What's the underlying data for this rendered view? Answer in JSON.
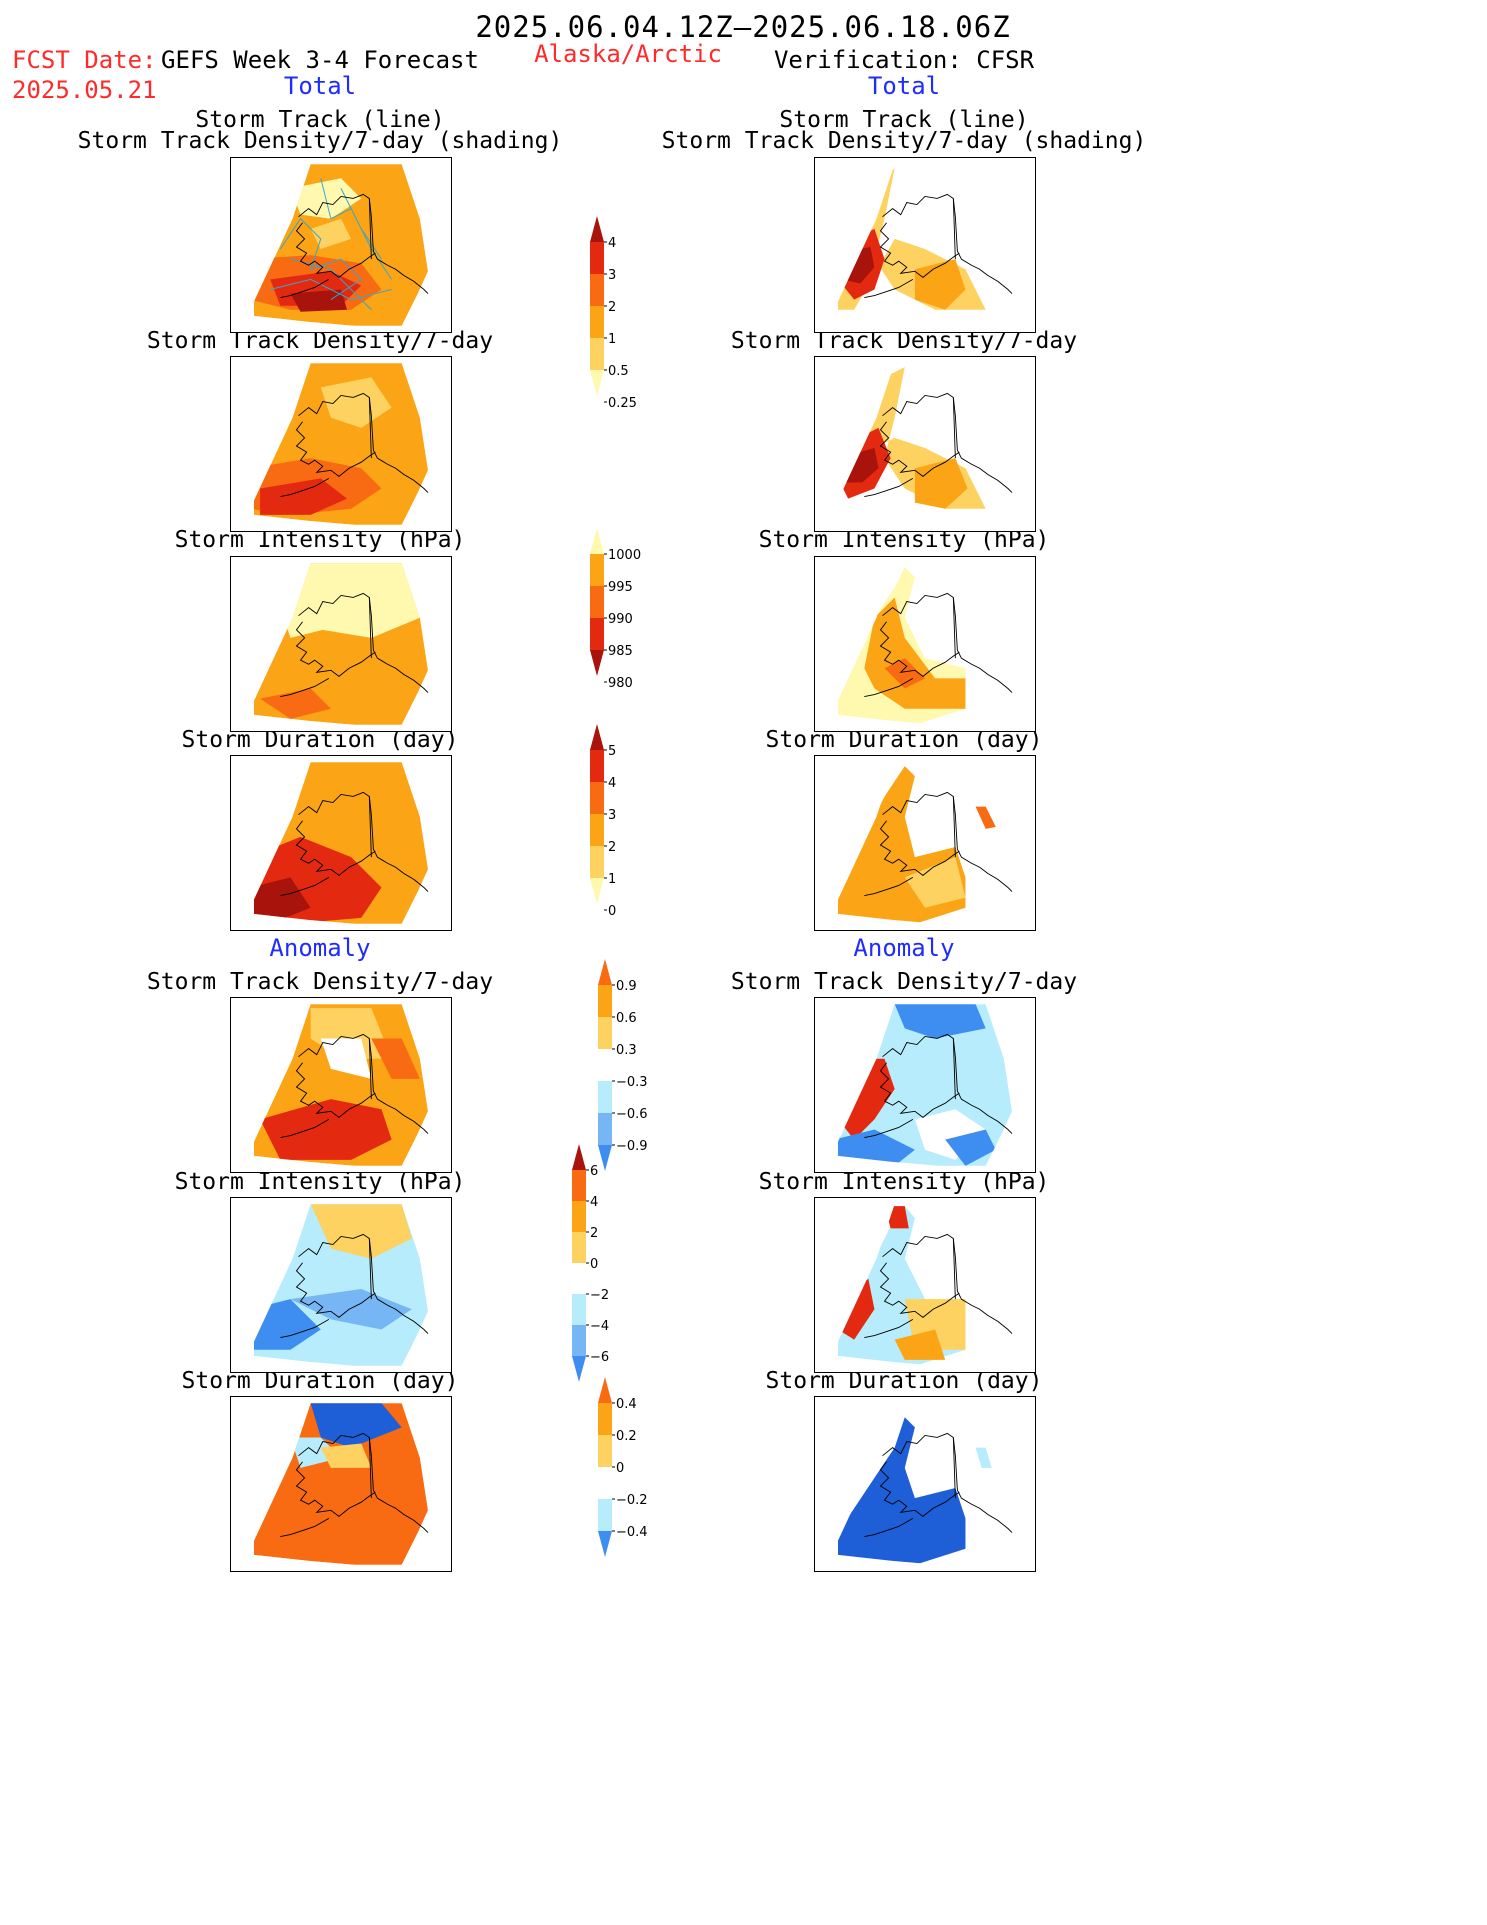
{
  "header": {
    "date_range": "2025.06.04.12Z–2025.06.18.06Z",
    "fcst_label": "FCST Date:",
    "fcst_date": "2025.05.21",
    "region": "Alaska/Arctic",
    "left_title": "GEFS Week 3-4 Forecast",
    "right_title": "Verification: CFSR",
    "left_subtitle": "Total",
    "right_subtitle": "Total",
    "anomaly_left": "Anomaly",
    "anomaly_right": "Anomaly"
  },
  "panel_titles": {
    "track_line": "Storm Track (line)",
    "track_shading": "Storm Track Density/7-day (shading)",
    "density": "Storm Track Density/7-day",
    "intensity": "Storm Intensity (hPa)",
    "duration": "Storm Duration (day)"
  },
  "colors": {
    "pale": "#fff9b0",
    "light_orange": "#fdd260",
    "orange": "#fba415",
    "dark_orange": "#f86b12",
    "red": "#e32a10",
    "dark_red": "#a8140b",
    "light_blue": "#b6ecfb",
    "mid_blue": "#77b6f5",
    "blue": "#3d8ef0",
    "dark_blue": "#1e5fd8",
    "track_line": "#3aa6c6"
  },
  "chart_data": [
    {
      "type": "colorbar",
      "name": "density_total",
      "levels": [
        0.25,
        0.5,
        1,
        2,
        3,
        4
      ],
      "labels": [
        "0.25",
        "0.5",
        "1",
        "2",
        "3",
        "4"
      ],
      "colors": [
        "#fff9b0",
        "#fdd260",
        "#fba415",
        "#f86b12",
        "#e32a10",
        "#a8140b"
      ]
    },
    {
      "type": "colorbar",
      "name": "intensity_total",
      "levels": [
        1000,
        995,
        990,
        985,
        980
      ],
      "labels": [
        "1000",
        "995",
        "990",
        "985",
        "980"
      ],
      "colors": [
        "#fff9b0",
        "#fba415",
        "#f86b12",
        "#e32a10",
        "#a8140b"
      ]
    },
    {
      "type": "colorbar",
      "name": "duration_total",
      "levels": [
        5,
        4,
        3,
        2,
        1,
        0
      ],
      "labels": [
        "5",
        "4",
        "3",
        "2",
        "1",
        "0"
      ],
      "colors": [
        "#a8140b",
        "#e32a10",
        "#f86b12",
        "#fba415",
        "#fdd260",
        "#fff9b0"
      ]
    },
    {
      "type": "colorbar",
      "name": "density_anomaly",
      "levels": [
        0.9,
        0.6,
        0.3,
        -0.3,
        -0.6,
        -0.9
      ],
      "labels": [
        "0.9",
        "0.6",
        "0.3",
        "−0.3",
        "−0.6",
        "−0.9"
      ],
      "colors": [
        "#f86b12",
        "#fba415",
        "#fdd260",
        "#ffffff",
        "#b6ecfb",
        "#77b6f5",
        "#3d8ef0"
      ]
    },
    {
      "type": "colorbar",
      "name": "intensity_anomaly",
      "levels": [
        6,
        4,
        2,
        0,
        -2,
        -4,
        -6
      ],
      "labels": [
        "6",
        "4",
        "2",
        "0",
        "−2",
        "−4",
        "−6"
      ],
      "colors": [
        "#a8140b",
        "#f86b12",
        "#fba415",
        "#fdd260",
        "#ffffff",
        "#b6ecfb",
        "#77b6f5",
        "#3d8ef0"
      ]
    },
    {
      "type": "colorbar",
      "name": "duration_anomaly",
      "levels": [
        0.4,
        0.2,
        0,
        -0.2,
        -0.4
      ],
      "labels": [
        "0.4",
        "0.2",
        "0",
        "−0.2",
        "−0.4"
      ],
      "colors": [
        "#f86b12",
        "#fba415",
        "#fdd260",
        "#ffffff",
        "#b6ecfb",
        "#3d8ef0"
      ]
    }
  ]
}
